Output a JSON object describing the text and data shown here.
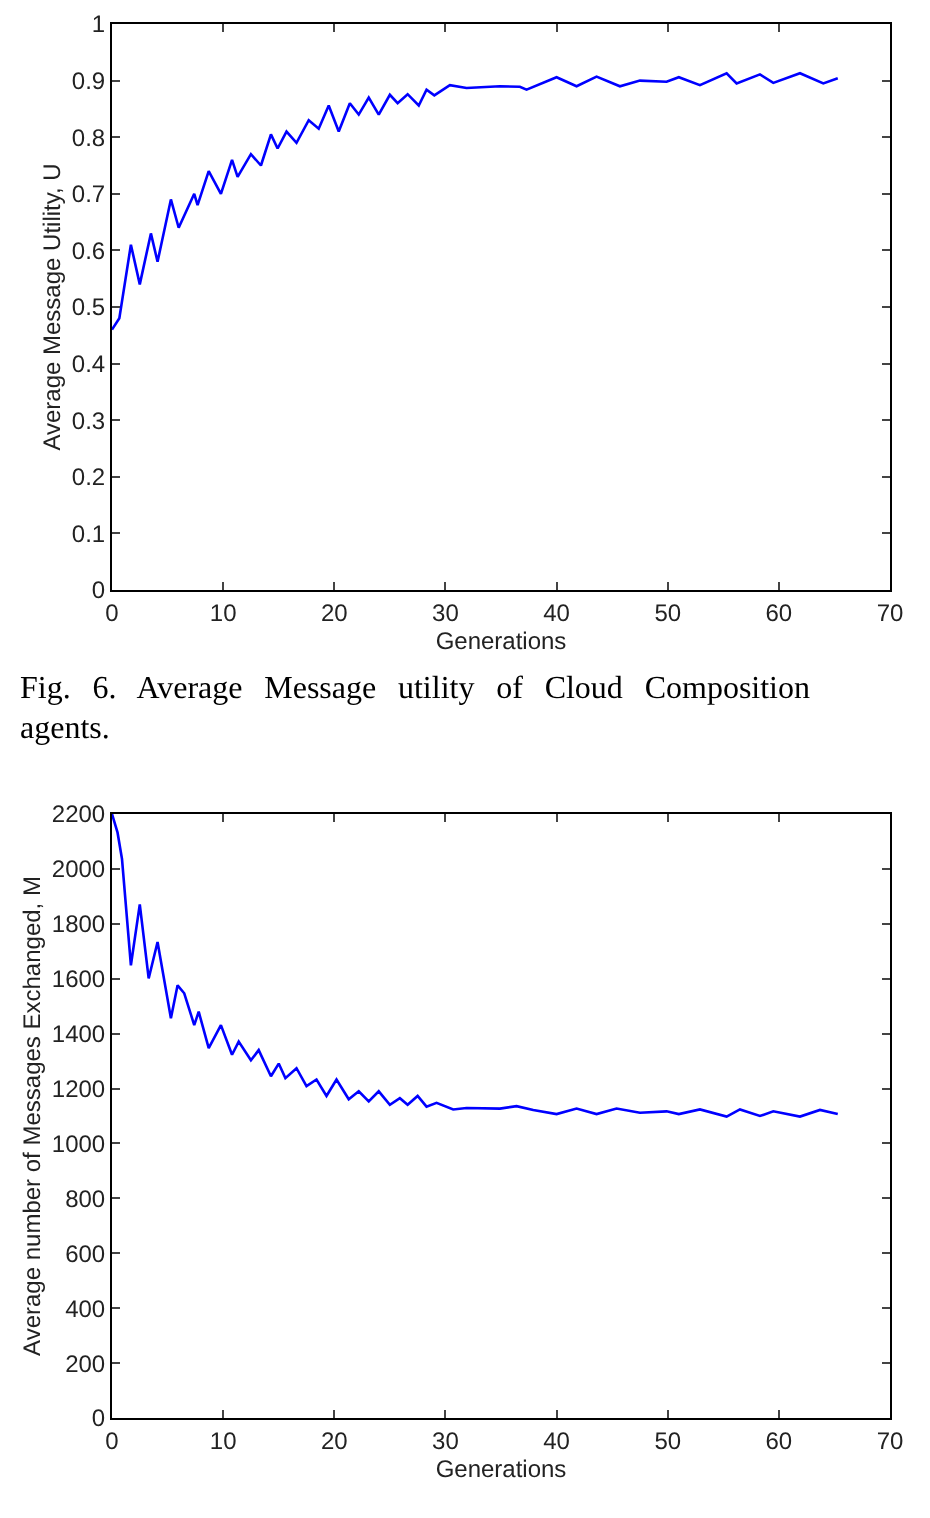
{
  "chart_data": [
    {
      "type": "line",
      "xlabel": "Generations",
      "ylabel": "Average Message Utility, U",
      "xlim": [
        0,
        70
      ],
      "xticks": [
        0,
        10,
        20,
        30,
        40,
        50,
        60,
        70
      ],
      "ylim": [
        0,
        1
      ],
      "yticks": [
        0,
        0.1,
        0.2,
        0.3,
        0.4,
        0.5,
        0.6,
        0.7,
        0.8,
        0.9,
        1
      ],
      "grid": false,
      "marker": "none",
      "line_style": "solid",
      "annotations": [
        "Fig. 6. Average Message utility of Cloud Composition agents."
      ],
      "series": [
        {
          "color": "#0000ff",
          "x": [
            0,
            0.66,
            1.7,
            2.5,
            3.5,
            4.1,
            5.3,
            6,
            7.4,
            7.7,
            8.7,
            9.8,
            10.8,
            11.3,
            12.5,
            13.4,
            14.3,
            14.9,
            15.7,
            16.6,
            17.7,
            18.6,
            19.5,
            20.4,
            21.4,
            22.2,
            23.1,
            24,
            25,
            25.7,
            26.6,
            27.6,
            28.3,
            29,
            30.4,
            31.9,
            34.9,
            36.7,
            37.3,
            40,
            41.8,
            43.6,
            45.7,
            47.5,
            49.9,
            51,
            52.9,
            55.3,
            56.2,
            58.3,
            59.5,
            61.9,
            64,
            65.3
          ],
          "values": [
            0.46,
            0.48,
            0.61,
            0.54,
            0.63,
            0.58,
            0.69,
            0.64,
            0.7,
            0.68,
            0.74,
            0.7,
            0.76,
            0.73,
            0.77,
            0.75,
            0.805,
            0.78,
            0.81,
            0.79,
            0.83,
            0.815,
            0.856,
            0.81,
            0.86,
            0.84,
            0.87,
            0.84,
            0.875,
            0.86,
            0.876,
            0.856,
            0.884,
            0.874,
            0.892,
            0.887,
            0.89,
            0.889,
            0.884,
            0.906,
            0.89,
            0.907,
            0.89,
            0.9,
            0.898,
            0.906,
            0.892,
            0.913,
            0.895,
            0.911,
            0.896,
            0.913,
            0.895,
            0.904
          ]
        }
      ]
    },
    {
      "type": "line",
      "xlabel": "Generations",
      "ylabel": "Average number of Messages Exchanged, M",
      "xlim": [
        0,
        70
      ],
      "xticks": [
        0,
        10,
        20,
        30,
        40,
        50,
        60,
        70
      ],
      "ylim": [
        0,
        2200
      ],
      "yticks": [
        0,
        200,
        400,
        600,
        800,
        1000,
        1200,
        1400,
        1600,
        1800,
        2000,
        2200
      ],
      "grid": false,
      "marker": "none",
      "line_style": "solid",
      "series": [
        {
          "color": "#0000ff",
          "x": [
            0,
            0.5,
            0.9,
            1.7,
            2.5,
            3.3,
            4.1,
            5.3,
            5.9,
            6.5,
            7.4,
            7.8,
            8.7,
            9.8,
            10.8,
            11.4,
            12.5,
            13.2,
            14.3,
            15,
            15.6,
            16.6,
            17.5,
            18.4,
            19.3,
            20.2,
            21.3,
            22.2,
            23.1,
            24,
            25,
            25.9,
            26.6,
            27.5,
            28.3,
            29.2,
            30.7,
            31.9,
            34.9,
            36.4,
            37.9,
            40,
            41.8,
            43.6,
            45.4,
            47.5,
            49.9,
            51,
            52.9,
            55.3,
            56.5,
            58.3,
            59.5,
            61.9,
            63.7,
            65.3
          ],
          "values": [
            2200,
            2132,
            2036,
            1649,
            1871,
            1601,
            1734,
            1456,
            1576,
            1547,
            1431,
            1480,
            1347,
            1431,
            1323,
            1371,
            1303,
            1340,
            1245,
            1291,
            1238,
            1274,
            1209,
            1233,
            1173,
            1233,
            1161,
            1190,
            1153,
            1190,
            1141,
            1165,
            1141,
            1173,
            1134,
            1148,
            1124,
            1129,
            1127,
            1136,
            1122,
            1107,
            1127,
            1107,
            1127,
            1112,
            1117,
            1107,
            1124,
            1098,
            1124,
            1100,
            1117,
            1098,
            1122,
            1107
          ]
        }
      ]
    }
  ]
}
